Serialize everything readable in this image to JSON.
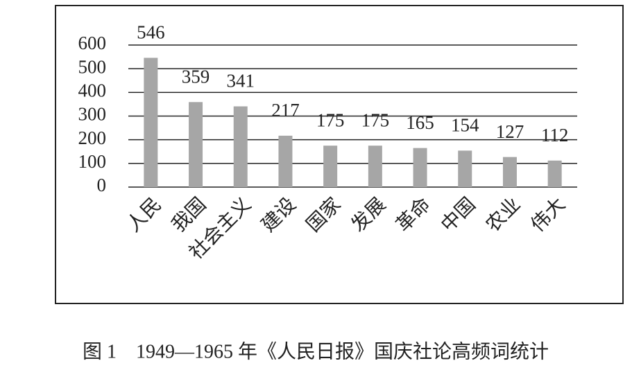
{
  "chart_data": {
    "type": "bar",
    "caption": "图 1　1949—1965 年《人民日报》国庆社论高频词统计",
    "categories": [
      "人民",
      "我国",
      "社会主义",
      "建设",
      "国家",
      "发展",
      "革命",
      "中国",
      "农业",
      "伟大"
    ],
    "values": [
      546,
      359,
      341,
      217,
      175,
      175,
      165,
      154,
      127,
      112
    ],
    "color": "#a6a6a6",
    "ylim": [
      0,
      600
    ],
    "yticks": [
      0,
      100,
      200,
      300,
      400,
      500,
      600
    ],
    "grid": true
  }
}
